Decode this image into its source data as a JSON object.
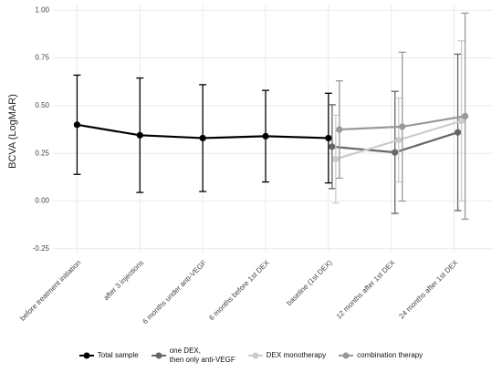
{
  "chart_data": {
    "type": "line",
    "y_label": "BCVA (LogMAR)",
    "categories": [
      "before treatment initiation",
      "after 3 injections",
      "6 months under anti-VEGF",
      "6 months before 1st DEX",
      "baseline (1st DEX)",
      "12 months after 1st DEX",
      "24 months after 1st DEX"
    ],
    "series": [
      {
        "name": "Total sample",
        "color": "#000000",
        "values": [
          0.4,
          0.345,
          0.33,
          0.34,
          0.33,
          null,
          null
        ],
        "errors": [
          0.26,
          0.3,
          0.28,
          0.24,
          0.235,
          null,
          null
        ]
      },
      {
        "name": "one DEX,\nthen only anti-VEGF",
        "color": "#666666",
        "values": [
          null,
          null,
          null,
          null,
          0.285,
          0.255,
          0.36
        ],
        "errors": [
          null,
          null,
          null,
          null,
          0.22,
          0.32,
          0.41
        ]
      },
      {
        "name": "DEX monotherapy",
        "color": "#cccccc",
        "values": [
          null,
          null,
          null,
          null,
          0.22,
          0.32,
          0.42
        ],
        "errors": [
          null,
          null,
          null,
          null,
          0.23,
          0.22,
          0.42
        ]
      },
      {
        "name": "combination therapy",
        "color": "#999999",
        "values": [
          null,
          null,
          null,
          null,
          0.375,
          0.39,
          0.445
        ],
        "errors": [
          null,
          null,
          null,
          null,
          0.255,
          0.39,
          0.54
        ]
      }
    ],
    "ylim": [
      -0.27,
      1.03
    ],
    "yticks": [
      {
        "value": -0.25,
        "label": "-0.25"
      },
      {
        "value": 0,
        "label": "0.00"
      },
      {
        "value": 0.25,
        "label": "0.25"
      },
      {
        "value": 0.5,
        "label": "0.50"
      },
      {
        "value": 0.75,
        "label": "0.75"
      },
      {
        "value": 1,
        "label": "1.00"
      }
    ],
    "grid": true,
    "legend": "bottom"
  }
}
